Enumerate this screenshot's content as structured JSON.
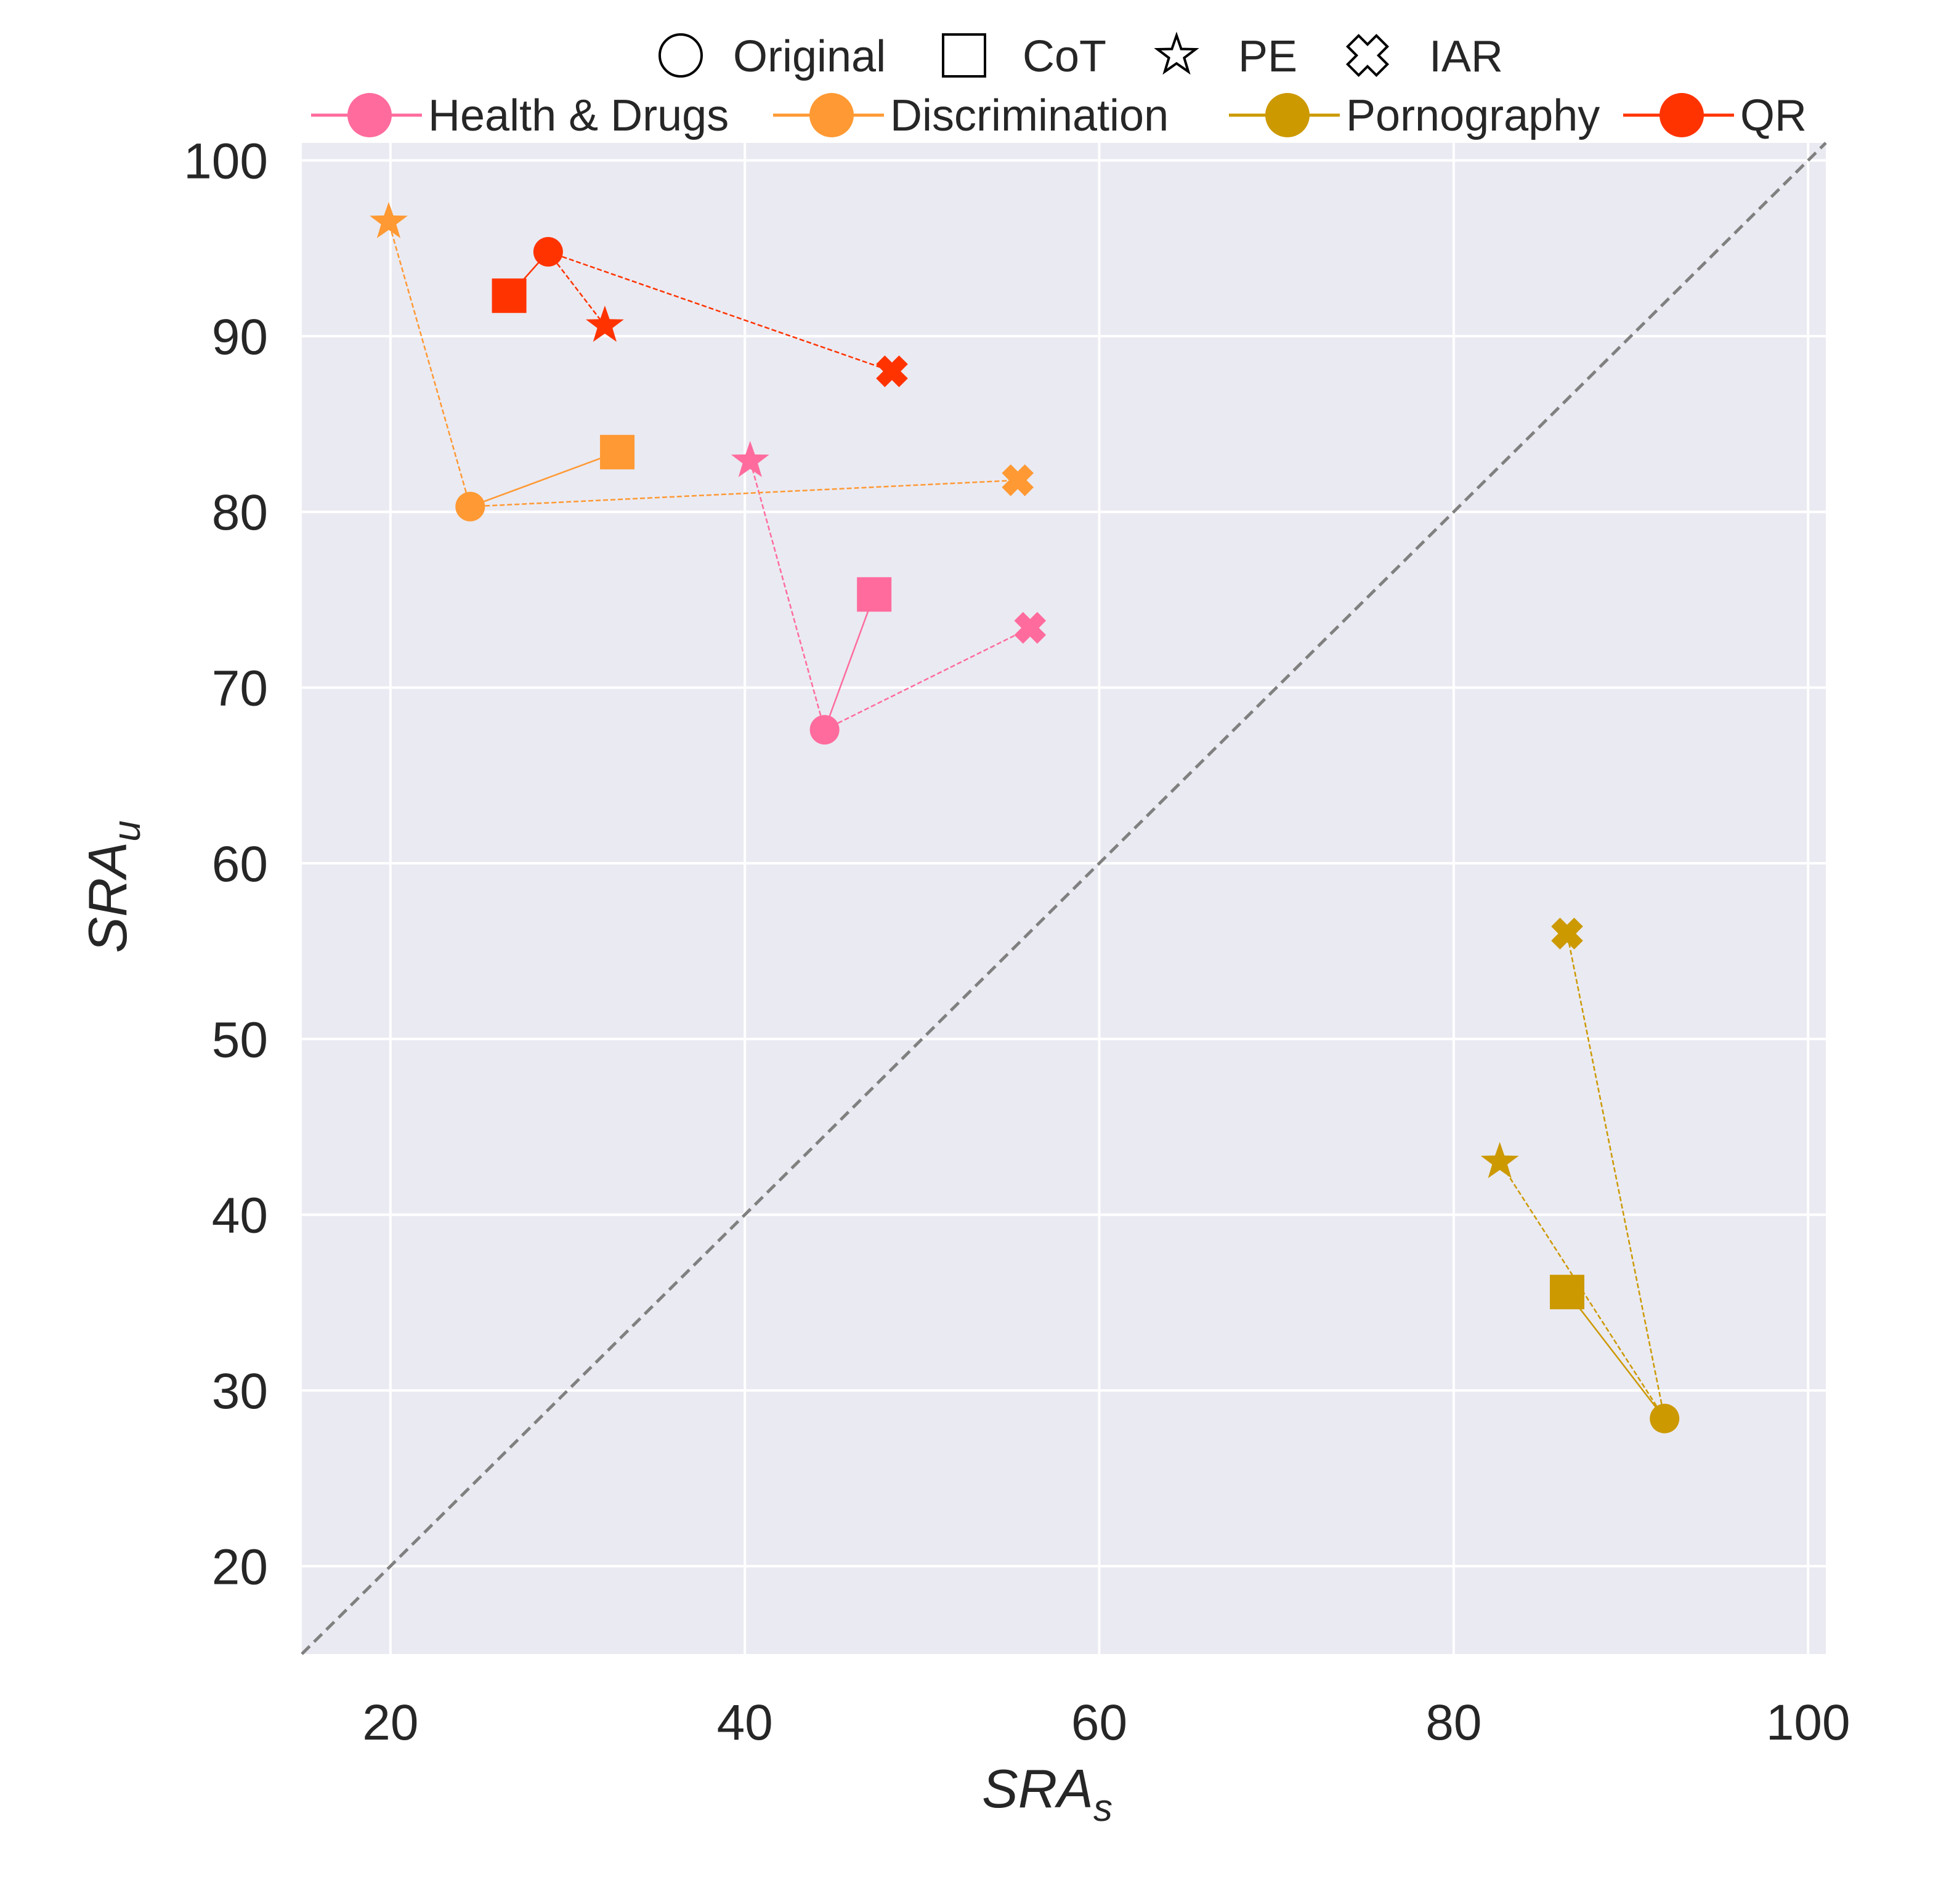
{
  "chart_data": {
    "type": "scatter",
    "xlabel": "SRA",
    "xlabel_subscript": "s",
    "ylabel": "SRA",
    "ylabel_subscript": "u",
    "xlim": [
      15,
      101
    ],
    "ylim": [
      15,
      101
    ],
    "xticks": [
      20,
      40,
      60,
      80,
      100
    ],
    "yticks": [
      20,
      30,
      40,
      50,
      60,
      70,
      80,
      90,
      100
    ],
    "grid": true,
    "diagonal_reference": true,
    "legend_position": "top",
    "marker_legend": [
      {
        "label": "Original",
        "marker": "circle"
      },
      {
        "label": "CoT",
        "marker": "square"
      },
      {
        "label": "PE",
        "marker": "star"
      },
      {
        "label": "IAR",
        "marker": "x-filled"
      }
    ],
    "series": [
      {
        "name": "Health & Drugs",
        "color": "#FF6B9D",
        "points": {
          "Original": [
            44.5,
            67.6
          ],
          "CoT": [
            47.3,
            75.3
          ],
          "PE": [
            40.3,
            82.9
          ],
          "IAR": [
            56.1,
            73.4
          ]
        }
      },
      {
        "name": "Discrimination",
        "color": "#FF9933",
        "points": {
          "Original": [
            24.5,
            80.3
          ],
          "CoT": [
            32.8,
            83.4
          ],
          "PE": [
            19.9,
            96.5
          ],
          "IAR": [
            55.4,
            81.8
          ]
        }
      },
      {
        "name": "Pornography",
        "color": "#CC9900",
        "points": {
          "Original": [
            91.9,
            28.4
          ],
          "CoT": [
            86.4,
            35.6
          ],
          "PE": [
            82.6,
            43.0
          ],
          "IAR": [
            86.4,
            56.0
          ]
        }
      },
      {
        "name": "QR",
        "color": "#FF3300",
        "points": {
          "Original": [
            28.9,
            94.8
          ],
          "CoT": [
            26.7,
            92.3
          ],
          "PE": [
            32.1,
            90.6
          ],
          "IAR": [
            48.3,
            88.0
          ]
        }
      }
    ]
  },
  "colors": {
    "plot_background": "#EAEAF2",
    "grid": "#FFFFFF",
    "diagonal": "#808080",
    "text": "#262626"
  }
}
